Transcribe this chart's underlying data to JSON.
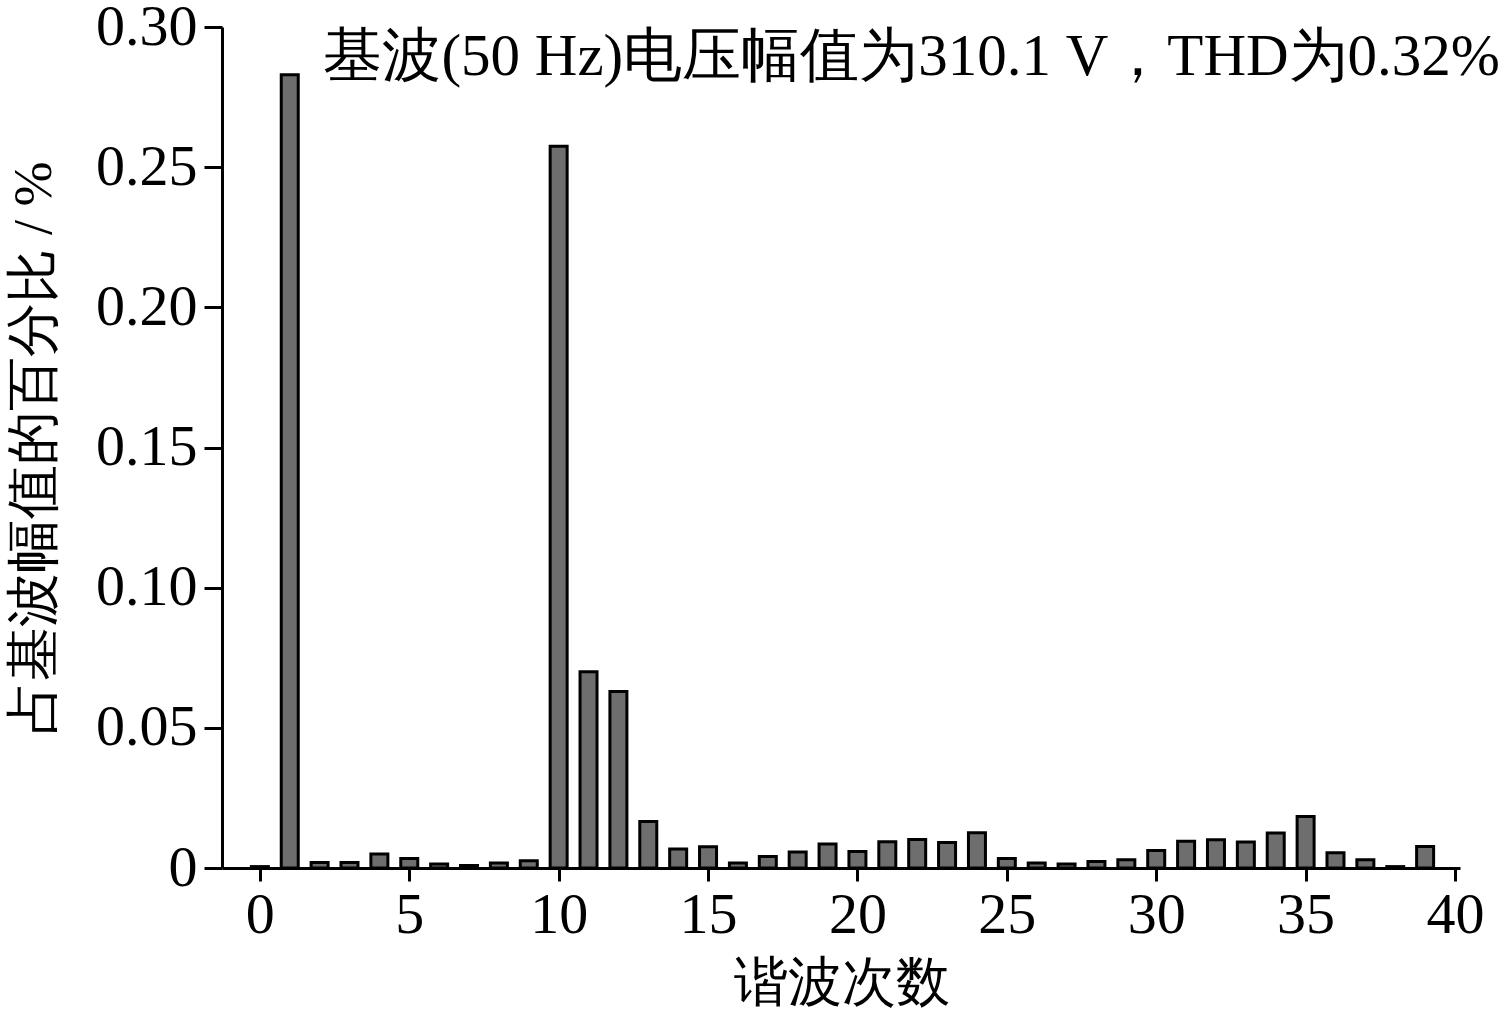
{
  "chart_data": {
    "type": "bar",
    "annotations": [
      "基波(50 Hz)电压幅值为310.1 V，THD为0.32%"
    ],
    "xlabel": "谐波次数",
    "ylabel": "占基波幅值的百分比 / %",
    "x": [
      0,
      1,
      2,
      3,
      4,
      5,
      6,
      7,
      8,
      9,
      10,
      11,
      12,
      13,
      14,
      15,
      16,
      17,
      18,
      19,
      20,
      21,
      22,
      23,
      24,
      25,
      26,
      27,
      28,
      29,
      30,
      31,
      32,
      33,
      34,
      35,
      36,
      37,
      38,
      39
    ],
    "values": [
      0.0005,
      0.283,
      0.002,
      0.002,
      0.005,
      0.0034,
      0.0014,
      0.0009,
      0.0018,
      0.0026,
      0.2575,
      0.07,
      0.063,
      0.0166,
      0.0068,
      0.0076,
      0.0018,
      0.0041,
      0.0057,
      0.0086,
      0.0059,
      0.0094,
      0.0102,
      0.0091,
      0.0126,
      0.0034,
      0.0018,
      0.0014,
      0.0023,
      0.0029,
      0.0062,
      0.0095,
      0.0101,
      0.0093,
      0.0125,
      0.0184,
      0.0054,
      0.0029,
      0.0005,
      0.0077
    ],
    "color": "#6e6e6e",
    "xlim": [
      -1.1,
      40
    ],
    "xticks": [
      0,
      5,
      10,
      15,
      20,
      25,
      30,
      35,
      40
    ],
    "ylim": [
      0,
      0.3
    ],
    "yticks": [
      0,
      0.05,
      {
        "value": 0.1,
        "label": "0.10"
      },
      0.15,
      {
        "value": 0.2,
        "label": "0.20"
      },
      0.25,
      {
        "value": 0.3,
        "label": "0.30"
      }
    ]
  }
}
